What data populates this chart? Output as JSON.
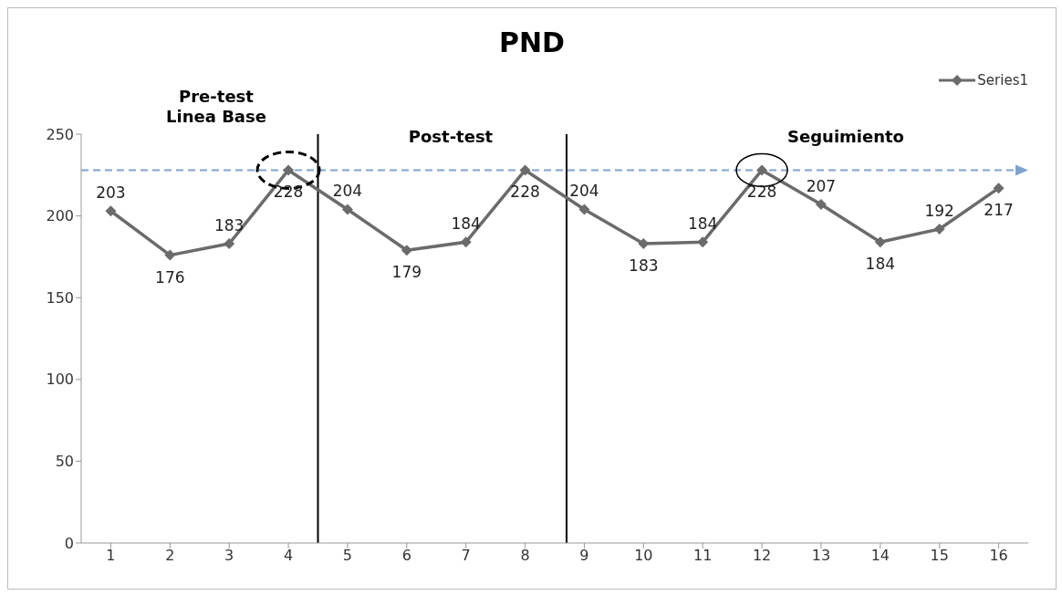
{
  "chart_data": {
    "type": "line",
    "title": "PND",
    "x": [
      1,
      2,
      3,
      4,
      5,
      6,
      7,
      8,
      9,
      10,
      11,
      12,
      13,
      14,
      15,
      16
    ],
    "series": [
      {
        "name": "Series1",
        "color": "#6b6b6b",
        "values": [
          203,
          176,
          183,
          228,
          204,
          179,
          184,
          228,
          204,
          183,
          184,
          228,
          207,
          184,
          192,
          217
        ]
      }
    ],
    "xlim": [
      0.5,
      16.5
    ],
    "xticks": [
      1,
      2,
      3,
      4,
      5,
      6,
      7,
      8,
      9,
      10,
      11,
      12,
      13,
      14,
      15,
      16
    ],
    "ylim": [
      0,
      250
    ],
    "yticks": [
      0,
      50,
      100,
      150,
      200,
      250
    ],
    "legend": "top right",
    "marker": "diamond",
    "line_style": "solid",
    "data_labels": true,
    "ref_lines": [
      {
        "axis": "y",
        "value": 228,
        "color": "#7fa3d1",
        "line_style": "dashed"
      },
      {
        "axis": "x",
        "value": 4.5,
        "color": "#000000",
        "line_style": "solid"
      },
      {
        "axis": "x",
        "value": 8.7,
        "color": "#000000",
        "line_style": "solid"
      }
    ],
    "annotations": [
      "Pre-test\nLinea Base",
      "Post-test",
      "Seguimiento"
    ]
  }
}
